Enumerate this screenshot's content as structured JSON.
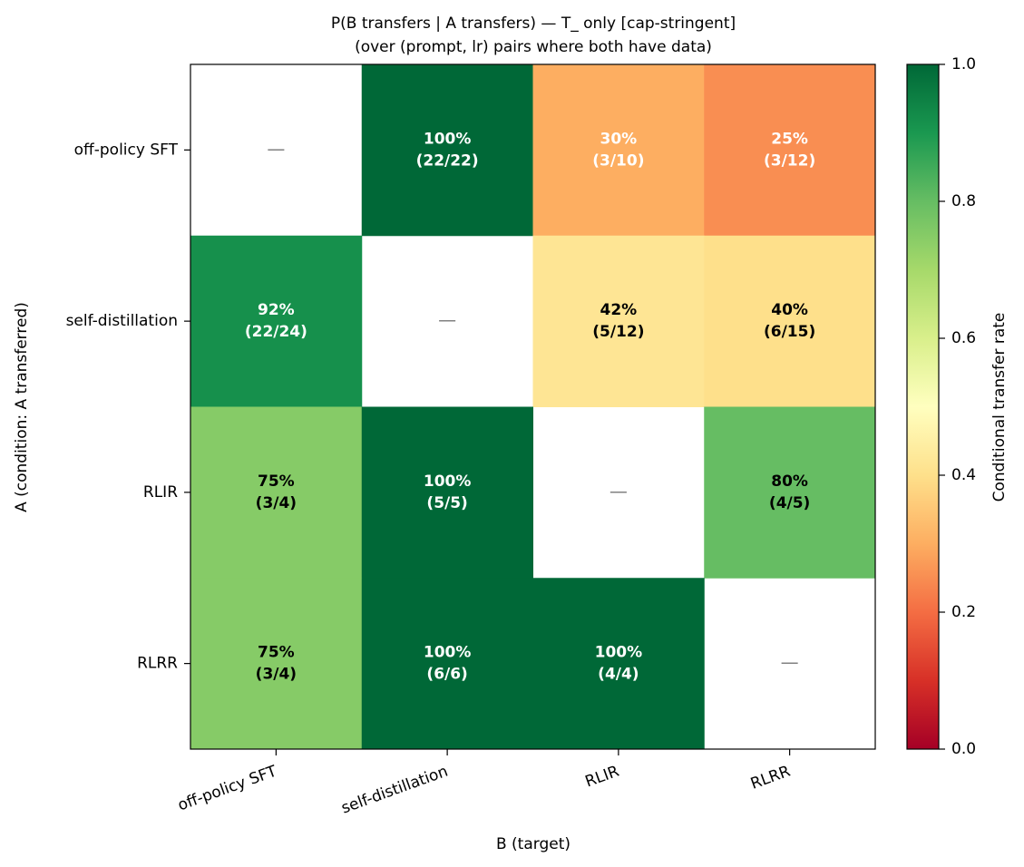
{
  "chart_data": {
    "type": "heatmap",
    "title": "P(B transfers | A transfers) — T_ only [cap-stringent]",
    "subtitle": "(over (prompt, lr) pairs where both have data)",
    "x_label": "B (target)",
    "y_label": "A (condition: A transferred)",
    "x_categories": [
      "off-policy SFT",
      "self-distillation",
      "RLIR",
      "RLRR"
    ],
    "y_categories": [
      "off-policy SFT",
      "self-distillation",
      "RLIR",
      "RLRR"
    ],
    "values": [
      [
        null,
        1.0,
        0.3,
        0.25
      ],
      [
        0.9167,
        null,
        0.4167,
        0.4
      ],
      [
        0.75,
        1.0,
        null,
        0.8
      ],
      [
        0.75,
        1.0,
        1.0,
        null
      ]
    ],
    "value_labels": [
      [
        "—",
        "100%",
        "30%",
        "25%"
      ],
      [
        "92%",
        "—",
        "42%",
        "40%"
      ],
      [
        "75%",
        "100%",
        "—",
        "80%"
      ],
      [
        "75%",
        "100%",
        "100%",
        "—"
      ]
    ],
    "counts": [
      [
        null,
        "(22/22)",
        "(3/10)",
        "(3/12)"
      ],
      [
        "(22/24)",
        null,
        "(5/12)",
        "(6/15)"
      ],
      [
        "(3/4)",
        "(5/5)",
        null,
        "(4/5)"
      ],
      [
        "(3/4)",
        "(6/6)",
        "(4/4)",
        null
      ]
    ],
    "colorbar_label": "Conditional transfer rate",
    "clim": [
      0,
      1
    ],
    "cticks": [
      {
        "value": 0,
        "label": "0.0"
      },
      {
        "value": 0.2,
        "label": "0.2"
      },
      {
        "value": 0.4,
        "label": "0.4"
      },
      {
        "value": 0.6,
        "label": "0.6"
      },
      {
        "value": 0.8,
        "label": "0.8"
      },
      {
        "value": 1,
        "label": "1.0"
      }
    ],
    "colormap": [
      "#a50026",
      "#d73027",
      "#f46d43",
      "#fdae61",
      "#fee08b",
      "#ffffbf",
      "#d9ef8b",
      "#a6d96a",
      "#66bd63",
      "#1a9850",
      "#006837"
    ]
  }
}
